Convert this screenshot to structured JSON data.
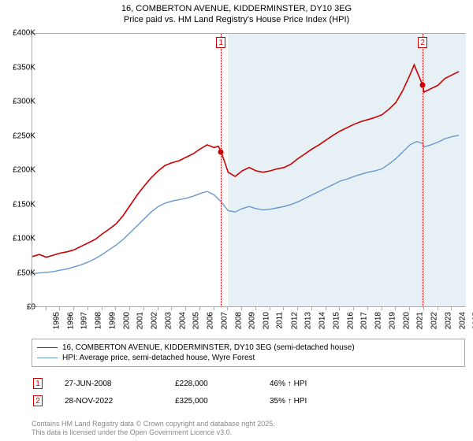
{
  "title": {
    "line1": "16, COMBERTON AVENUE, KIDDERMINSTER, DY10 3EG",
    "line2": "Price paid vs. HM Land Registry's House Price Index (HPI)"
  },
  "chart": {
    "type": "line",
    "background_color": "#ffffff",
    "plot_border_color": "#aaaaaa",
    "shaded_region": {
      "x_start": 2009,
      "x_end": 2026,
      "color": "#e6f0f5"
    },
    "xlim": [
      1995,
      2026
    ],
    "ylim": [
      0,
      400000
    ],
    "y_ticks": [
      0,
      50000,
      100000,
      150000,
      200000,
      250000,
      300000,
      350000,
      400000
    ],
    "y_tick_labels": [
      "£0",
      "£50K",
      "£100K",
      "£150K",
      "£200K",
      "£250K",
      "£300K",
      "£350K",
      "£400K"
    ],
    "x_ticks": [
      1995,
      1996,
      1997,
      1998,
      1999,
      2000,
      2001,
      2002,
      2003,
      2004,
      2005,
      2006,
      2007,
      2008,
      2009,
      2010,
      2011,
      2012,
      2013,
      2014,
      2015,
      2016,
      2017,
      2018,
      2019,
      2020,
      2021,
      2022,
      2023,
      2024,
      2025
    ],
    "label_fontsize": 10,
    "series": [
      {
        "name": "price_paid",
        "label": "16, COMBERTON AVENUE, KIDDERMINSTER, DY10 3EG (semi-detached house)",
        "color": "#cc0000",
        "line_width": 1.6,
        "data": [
          [
            1995,
            75000
          ],
          [
            1995.5,
            78000
          ],
          [
            1996,
            74000
          ],
          [
            1996.5,
            77000
          ],
          [
            1997,
            80000
          ],
          [
            1997.5,
            82000
          ],
          [
            1998,
            85000
          ],
          [
            1998.5,
            90000
          ],
          [
            1999,
            95000
          ],
          [
            1999.5,
            100000
          ],
          [
            2000,
            108000
          ],
          [
            2000.5,
            115000
          ],
          [
            2001,
            123000
          ],
          [
            2001.5,
            135000
          ],
          [
            2002,
            150000
          ],
          [
            2002.5,
            165000
          ],
          [
            2003,
            178000
          ],
          [
            2003.5,
            190000
          ],
          [
            2004,
            200000
          ],
          [
            2004.5,
            208000
          ],
          [
            2005,
            212000
          ],
          [
            2005.5,
            215000
          ],
          [
            2006,
            220000
          ],
          [
            2006.5,
            225000
          ],
          [
            2007,
            232000
          ],
          [
            2007.5,
            238000
          ],
          [
            2008,
            234000
          ],
          [
            2008.3,
            236000
          ],
          [
            2008.5,
            228000
          ],
          [
            2009,
            198000
          ],
          [
            2009.5,
            192000
          ],
          [
            2010,
            200000
          ],
          [
            2010.5,
            205000
          ],
          [
            2011,
            200000
          ],
          [
            2011.5,
            198000
          ],
          [
            2012,
            200000
          ],
          [
            2012.5,
            203000
          ],
          [
            2013,
            205000
          ],
          [
            2013.5,
            210000
          ],
          [
            2014,
            218000
          ],
          [
            2014.5,
            225000
          ],
          [
            2015,
            232000
          ],
          [
            2015.5,
            238000
          ],
          [
            2016,
            245000
          ],
          [
            2016.5,
            252000
          ],
          [
            2017,
            258000
          ],
          [
            2017.5,
            263000
          ],
          [
            2018,
            268000
          ],
          [
            2018.5,
            272000
          ],
          [
            2019,
            275000
          ],
          [
            2019.5,
            278000
          ],
          [
            2020,
            282000
          ],
          [
            2020.5,
            290000
          ],
          [
            2021,
            300000
          ],
          [
            2021.5,
            318000
          ],
          [
            2022,
            340000
          ],
          [
            2022.3,
            355000
          ],
          [
            2022.5,
            345000
          ],
          [
            2022.91,
            325000
          ],
          [
            2023,
            315000
          ],
          [
            2023.5,
            320000
          ],
          [
            2024,
            325000
          ],
          [
            2024.5,
            335000
          ],
          [
            2025,
            340000
          ],
          [
            2025.5,
            345000
          ]
        ]
      },
      {
        "name": "hpi",
        "label": "HPI: Average price, semi-detached house, Wyre Forest",
        "color": "#6699cc",
        "line_width": 1.4,
        "data": [
          [
            1995,
            50000
          ],
          [
            1995.5,
            51000
          ],
          [
            1996,
            52000
          ],
          [
            1996.5,
            53000
          ],
          [
            1997,
            55000
          ],
          [
            1997.5,
            57000
          ],
          [
            1998,
            60000
          ],
          [
            1998.5,
            63000
          ],
          [
            1999,
            67000
          ],
          [
            1999.5,
            72000
          ],
          [
            2000,
            78000
          ],
          [
            2000.5,
            85000
          ],
          [
            2001,
            92000
          ],
          [
            2001.5,
            100000
          ],
          [
            2002,
            110000
          ],
          [
            2002.5,
            120000
          ],
          [
            2003,
            130000
          ],
          [
            2003.5,
            140000
          ],
          [
            2004,
            148000
          ],
          [
            2004.5,
            153000
          ],
          [
            2005,
            156000
          ],
          [
            2005.5,
            158000
          ],
          [
            2006,
            160000
          ],
          [
            2006.5,
            163000
          ],
          [
            2007,
            167000
          ],
          [
            2007.5,
            170000
          ],
          [
            2008,
            165000
          ],
          [
            2008.5,
            155000
          ],
          [
            2009,
            142000
          ],
          [
            2009.5,
            140000
          ],
          [
            2010,
            145000
          ],
          [
            2010.5,
            148000
          ],
          [
            2011,
            145000
          ],
          [
            2011.5,
            143000
          ],
          [
            2012,
            144000
          ],
          [
            2012.5,
            146000
          ],
          [
            2013,
            148000
          ],
          [
            2013.5,
            151000
          ],
          [
            2014,
            155000
          ],
          [
            2014.5,
            160000
          ],
          [
            2015,
            165000
          ],
          [
            2015.5,
            170000
          ],
          [
            2016,
            175000
          ],
          [
            2016.5,
            180000
          ],
          [
            2017,
            185000
          ],
          [
            2017.5,
            188000
          ],
          [
            2018,
            192000
          ],
          [
            2018.5,
            195000
          ],
          [
            2019,
            198000
          ],
          [
            2019.5,
            200000
          ],
          [
            2020,
            203000
          ],
          [
            2020.5,
            210000
          ],
          [
            2021,
            218000
          ],
          [
            2021.5,
            228000
          ],
          [
            2022,
            238000
          ],
          [
            2022.5,
            243000
          ],
          [
            2022.91,
            240000
          ],
          [
            2023,
            235000
          ],
          [
            2023.5,
            238000
          ],
          [
            2024,
            242000
          ],
          [
            2024.5,
            247000
          ],
          [
            2025,
            250000
          ],
          [
            2025.5,
            252000
          ]
        ]
      }
    ],
    "events": [
      {
        "num": "1",
        "x": 2008.49,
        "date": "27-JUN-2008",
        "price": "£228,000",
        "pct": "46% ↑ HPI",
        "marker_y": 228000,
        "marker_color": "#cc0000"
      },
      {
        "num": "2",
        "x": 2022.91,
        "date": "28-NOV-2022",
        "price": "£325,000",
        "pct": "35% ↑ HPI",
        "marker_y": 325000,
        "marker_color": "#cc0000"
      }
    ],
    "vline_color": "#cc0000"
  },
  "legend": {
    "border_color": "#aaaaaa",
    "fontsize": 10
  },
  "attribution": {
    "line1": "Contains HM Land Registry data © Crown copyright and database right 2025.",
    "line2": "This data is licensed under the Open Government Licence v3.0.",
    "color": "#888888",
    "fontsize": 9
  }
}
